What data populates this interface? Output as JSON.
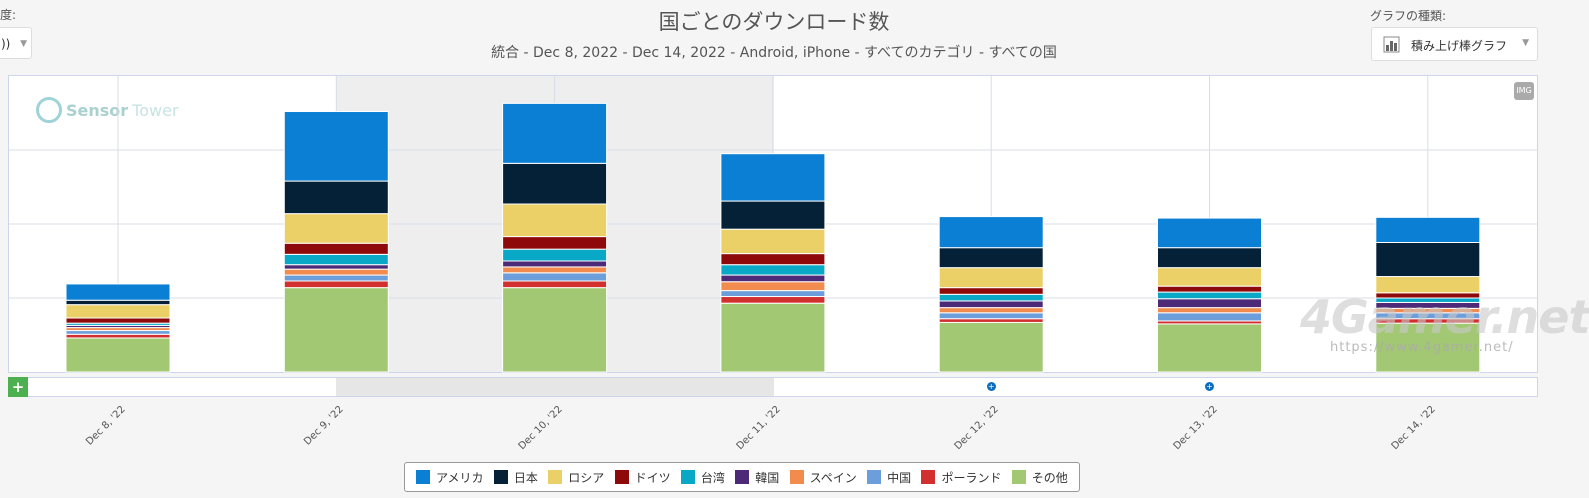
{
  "header": {
    "title": "国ごとのダウンロード数",
    "subtitle": "統合 - Dec 8, 2022 - Dec 14, 2022 - Android, iPhone - すべてのカテゴリ - すべての国",
    "left_label": "度:",
    "left_select_value": "))",
    "chart_type_label": "グラフの種類:",
    "chart_type_value": "積み上げ棒グラフ",
    "chart_type_icon": "bar-chart-icon"
  },
  "toolbar": {
    "img_button": "IMG",
    "add_button": "+"
  },
  "watermarks": {
    "sensor_tower_1": "Sensor",
    "sensor_tower_2": "Tower",
    "site": "4Gamer.net",
    "site_url": "https://www.4gamer.net/"
  },
  "colors": {
    "アメリカ": "#0a7fd4",
    "日本": "#052138",
    "ロシア": "#ead067",
    "ドイツ": "#8e0a0a",
    "台湾": "#0aa8c7",
    "韓国": "#4d2a78",
    "スペイン": "#f28c4e",
    "中国": "#6c9edc",
    "ポーランド": "#d22f2f",
    "その他": "#a3c873"
  },
  "chart_data": {
    "type": "bar",
    "stacked": true,
    "categories": [
      "Dec 8, '22",
      "Dec 9, '22",
      "Dec 10, '22",
      "Dec 11, '22",
      "Dec 12, '22",
      "Dec 13, '22",
      "Dec 14, '22"
    ],
    "ylim": [
      0,
      4
    ],
    "grid": true,
    "legend_position": "bottom",
    "series": [
      {
        "name": "その他",
        "values": [
          0.46,
          1.14,
          1.14,
          0.93,
          0.67,
          0.65,
          0.66
        ]
      },
      {
        "name": "ポーランド",
        "values": [
          0.05,
          0.09,
          0.09,
          0.09,
          0.05,
          0.04,
          0.06
        ]
      },
      {
        "name": "中国",
        "values": [
          0.05,
          0.08,
          0.11,
          0.08,
          0.08,
          0.11,
          0.08
        ]
      },
      {
        "name": "スペイン",
        "values": [
          0.04,
          0.08,
          0.08,
          0.12,
          0.07,
          0.07,
          0.06
        ]
      },
      {
        "name": "韓国",
        "values": [
          0.03,
          0.06,
          0.08,
          0.09,
          0.09,
          0.12,
          0.08
        ]
      },
      {
        "name": "台湾",
        "values": [
          0.03,
          0.14,
          0.16,
          0.14,
          0.09,
          0.09,
          0.06
        ]
      },
      {
        "name": "ドイツ",
        "values": [
          0.07,
          0.15,
          0.17,
          0.15,
          0.09,
          0.08,
          0.07
        ]
      },
      {
        "name": "ロシア",
        "values": [
          0.18,
          0.4,
          0.44,
          0.33,
          0.27,
          0.25,
          0.22
        ]
      },
      {
        "name": "日本",
        "values": [
          0.06,
          0.44,
          0.55,
          0.38,
          0.27,
          0.27,
          0.46
        ]
      },
      {
        "name": "アメリカ",
        "values": [
          0.22,
          0.94,
          0.81,
          0.64,
          0.42,
          0.4,
          0.34
        ]
      }
    ],
    "legend": [
      "アメリカ",
      "日本",
      "ロシア",
      "ドイツ",
      "台湾",
      "韓国",
      "スペイン",
      "中国",
      "ポーランド",
      "その他"
    ],
    "navigator_flags": [
      "Dec 12, '22",
      "Dec 13, '22"
    ]
  }
}
